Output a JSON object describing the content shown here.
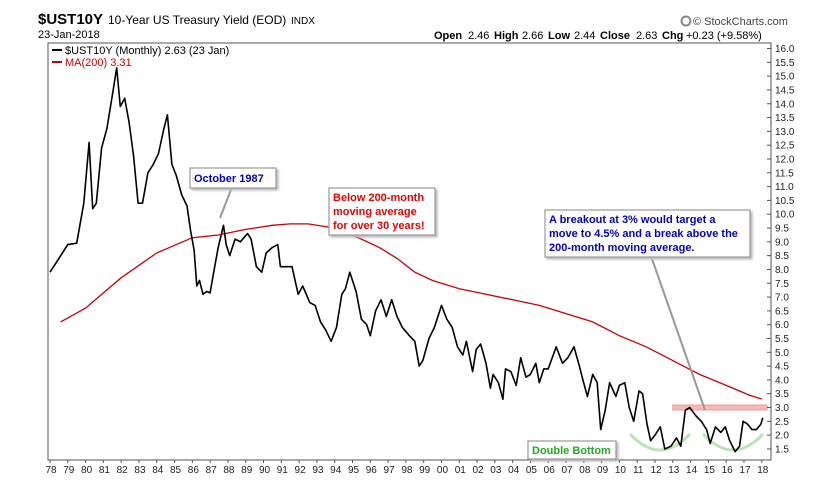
{
  "chart_data": {
    "type": "line",
    "symbol": "$UST10Y",
    "title": "10-Year US Treasury Yield (EOD)",
    "exchange": "INDX",
    "date": "23-Jan-2018",
    "brand": "© StockCharts.com",
    "ohlc": {
      "open_label": "Open",
      "open": "2.46",
      "high_label": "High",
      "high": "2.66",
      "low_label": "Low",
      "low": "2.44",
      "close_label": "Close",
      "close": "2.63",
      "chg_label": "Chg",
      "chg": "+0.23 (+9.58%)"
    },
    "legend": [
      {
        "name": "$UST10Y (Monthly) 2.63 (23 Jan)",
        "color": "#000000"
      },
      {
        "name": "MA(200) 3.31",
        "color": "#cc0000"
      }
    ],
    "ylim": [
      1.1,
      16.2
    ],
    "yticks": [
      "1.5",
      "2.0",
      "2.5",
      "3.0",
      "3.5",
      "4.0",
      "4.5",
      "5.0",
      "5.5",
      "6.0",
      "6.5",
      "7.0",
      "7.5",
      "8.0",
      "8.5",
      "9.0",
      "9.5",
      "10.0",
      "10.5",
      "11.0",
      "11.5",
      "12.0",
      "12.5",
      "13.0",
      "13.5",
      "14.0",
      "14.5",
      "15.0",
      "15.5",
      "16.0"
    ],
    "xlim": [
      1978.0,
      2018.35
    ],
    "xticks": [
      "78",
      "79",
      "80",
      "81",
      "82",
      "83",
      "84",
      "85",
      "86",
      "87",
      "88",
      "89",
      "90",
      "91",
      "92",
      "93",
      "94",
      "95",
      "96",
      "97",
      "98",
      "99",
      "00",
      "01",
      "02",
      "03",
      "04",
      "05",
      "06",
      "07",
      "08",
      "09",
      "10",
      "11",
      "12",
      "13",
      "14",
      "15",
      "16",
      "17",
      "18"
    ],
    "series": [
      {
        "name": "$UST10Y (Monthly)",
        "color": "#000000",
        "points": [
          [
            1978.0,
            7.9
          ],
          [
            1978.5,
            8.4
          ],
          [
            1979.0,
            8.9
          ],
          [
            1979.5,
            8.95
          ],
          [
            1979.9,
            10.4
          ],
          [
            1980.2,
            12.6
          ],
          [
            1980.4,
            10.2
          ],
          [
            1980.6,
            10.4
          ],
          [
            1980.9,
            12.4
          ],
          [
            1981.2,
            13.1
          ],
          [
            1981.5,
            14.3
          ],
          [
            1981.75,
            15.3
          ],
          [
            1981.95,
            13.9
          ],
          [
            1982.2,
            14.2
          ],
          [
            1982.45,
            13.3
          ],
          [
            1982.7,
            12.1
          ],
          [
            1982.95,
            10.4
          ],
          [
            1983.2,
            10.4
          ],
          [
            1983.5,
            11.5
          ],
          [
            1983.8,
            11.8
          ],
          [
            1984.1,
            12.2
          ],
          [
            1984.4,
            13.1
          ],
          [
            1984.6,
            13.6
          ],
          [
            1984.85,
            11.8
          ],
          [
            1985.1,
            11.4
          ],
          [
            1985.4,
            10.7
          ],
          [
            1985.7,
            10.3
          ],
          [
            1985.9,
            9.4
          ],
          [
            1986.1,
            8.7
          ],
          [
            1986.25,
            7.4
          ],
          [
            1986.4,
            7.6
          ],
          [
            1986.6,
            7.1
          ],
          [
            1986.8,
            7.2
          ],
          [
            1987.0,
            7.15
          ],
          [
            1987.2,
            7.9
          ],
          [
            1987.45,
            8.8
          ],
          [
            1987.75,
            9.6
          ],
          [
            1987.9,
            8.9
          ],
          [
            1988.1,
            8.5
          ],
          [
            1988.4,
            9.1
          ],
          [
            1988.7,
            9.0
          ],
          [
            1989.1,
            9.3
          ],
          [
            1989.3,
            9.1
          ],
          [
            1989.6,
            8.1
          ],
          [
            1989.9,
            7.9
          ],
          [
            1990.15,
            8.6
          ],
          [
            1990.5,
            8.8
          ],
          [
            1990.8,
            8.9
          ],
          [
            1990.95,
            8.1
          ],
          [
            1991.3,
            8.1
          ],
          [
            1991.6,
            8.1
          ],
          [
            1991.95,
            7.1
          ],
          [
            1992.2,
            7.4
          ],
          [
            1992.6,
            6.8
          ],
          [
            1992.9,
            6.7
          ],
          [
            1993.2,
            6.1
          ],
          [
            1993.5,
            5.8
          ],
          [
            1993.8,
            5.4
          ],
          [
            1994.1,
            5.9
          ],
          [
            1994.4,
            7.1
          ],
          [
            1994.6,
            7.3
          ],
          [
            1994.85,
            7.9
          ],
          [
            1995.2,
            7.2
          ],
          [
            1995.5,
            6.2
          ],
          [
            1995.8,
            6.0
          ],
          [
            1996.0,
            5.6
          ],
          [
            1996.3,
            6.5
          ],
          [
            1996.6,
            6.9
          ],
          [
            1996.9,
            6.3
          ],
          [
            1997.2,
            6.9
          ],
          [
            1997.5,
            6.3
          ],
          [
            1997.8,
            5.9
          ],
          [
            1998.2,
            5.6
          ],
          [
            1998.5,
            5.4
          ],
          [
            1998.75,
            4.5
          ],
          [
            1998.95,
            4.7
          ],
          [
            1999.3,
            5.5
          ],
          [
            1999.6,
            5.9
          ],
          [
            2000.0,
            6.7
          ],
          [
            2000.3,
            6.2
          ],
          [
            2000.6,
            5.9
          ],
          [
            2000.9,
            5.2
          ],
          [
            2001.2,
            4.9
          ],
          [
            2001.4,
            5.4
          ],
          [
            2001.75,
            4.3
          ],
          [
            2001.95,
            5.1
          ],
          [
            2002.2,
            5.3
          ],
          [
            2002.5,
            4.6
          ],
          [
            2002.75,
            3.7
          ],
          [
            2002.9,
            4.2
          ],
          [
            2003.2,
            3.9
          ],
          [
            2003.45,
            3.3
          ],
          [
            2003.6,
            4.4
          ],
          [
            2003.9,
            4.3
          ],
          [
            2004.2,
            3.8
          ],
          [
            2004.45,
            4.8
          ],
          [
            2004.75,
            4.1
          ],
          [
            2005.0,
            4.2
          ],
          [
            2005.3,
            4.6
          ],
          [
            2005.5,
            3.9
          ],
          [
            2005.75,
            4.4
          ],
          [
            2006.0,
            4.4
          ],
          [
            2006.45,
            5.2
          ],
          [
            2006.8,
            4.6
          ],
          [
            2007.1,
            4.8
          ],
          [
            2007.45,
            5.2
          ],
          [
            2007.75,
            4.5
          ],
          [
            2007.95,
            4.0
          ],
          [
            2008.2,
            3.4
          ],
          [
            2008.5,
            4.2
          ],
          [
            2008.75,
            3.9
          ],
          [
            2008.95,
            2.2
          ],
          [
            2009.2,
            2.9
          ],
          [
            2009.45,
            3.9
          ],
          [
            2009.8,
            3.4
          ],
          [
            2010.0,
            3.8
          ],
          [
            2010.3,
            3.9
          ],
          [
            2010.55,
            3.0
          ],
          [
            2010.8,
            2.5
          ],
          [
            2011.1,
            3.6
          ],
          [
            2011.3,
            3.5
          ],
          [
            2011.55,
            2.4
          ],
          [
            2011.75,
            1.8
          ],
          [
            2012.0,
            2.0
          ],
          [
            2012.3,
            2.3
          ],
          [
            2012.55,
            1.5
          ],
          [
            2012.9,
            1.6
          ],
          [
            2013.2,
            1.9
          ],
          [
            2013.45,
            1.6
          ],
          [
            2013.7,
            2.9
          ],
          [
            2013.95,
            3.0
          ],
          [
            2014.3,
            2.7
          ],
          [
            2014.6,
            2.5
          ],
          [
            2014.9,
            2.2
          ],
          [
            2015.1,
            1.7
          ],
          [
            2015.4,
            2.3
          ],
          [
            2015.7,
            2.1
          ],
          [
            2015.95,
            2.3
          ],
          [
            2016.2,
            1.8
          ],
          [
            2016.5,
            1.4
          ],
          [
            2016.75,
            1.6
          ],
          [
            2016.95,
            2.5
          ],
          [
            2017.2,
            2.4
          ],
          [
            2017.45,
            2.2
          ],
          [
            2017.7,
            2.2
          ],
          [
            2017.95,
            2.4
          ],
          [
            2018.06,
            2.63
          ]
        ]
      },
      {
        "name": "MA(200)",
        "color": "#cc0000",
        "points": [
          [
            1978.6,
            6.1
          ],
          [
            1980.0,
            6.6
          ],
          [
            1982.0,
            7.7
          ],
          [
            1984.0,
            8.6
          ],
          [
            1986.0,
            9.15
          ],
          [
            1987.5,
            9.25
          ],
          [
            1989.0,
            9.45
          ],
          [
            1990.5,
            9.6
          ],
          [
            1991.5,
            9.65
          ],
          [
            1992.5,
            9.65
          ],
          [
            1994.0,
            9.5
          ],
          [
            1995.5,
            9.1
          ],
          [
            1996.5,
            8.8
          ],
          [
            1997.5,
            8.4
          ],
          [
            1998.5,
            7.9
          ],
          [
            1999.5,
            7.6
          ],
          [
            2001.0,
            7.3
          ],
          [
            2002.5,
            7.1
          ],
          [
            2004.0,
            6.9
          ],
          [
            2005.5,
            6.7
          ],
          [
            2007.0,
            6.4
          ],
          [
            2008.5,
            6.1
          ],
          [
            2010.0,
            5.6
          ],
          [
            2011.5,
            5.2
          ],
          [
            2013.0,
            4.7
          ],
          [
            2014.5,
            4.2
          ],
          [
            2016.0,
            3.8
          ],
          [
            2017.3,
            3.45
          ],
          [
            2018.0,
            3.31
          ]
        ]
      }
    ],
    "level_line": {
      "value": 3.0,
      "x_from": 2013.0,
      "x_to": 2018.3,
      "color": "#f4a6a6"
    },
    "annotations": [
      {
        "text": "October 1987",
        "color": "#0000cc"
      },
      {
        "lines": [
          "Below 200-month",
          "moving average",
          "for over 30 years!"
        ],
        "color": "#ee0000"
      },
      {
        "lines": [
          "A breakout at 3% would target a",
          "move to 4.5% and a break above the",
          "200-month moving average."
        ],
        "color": "#0000cc"
      },
      {
        "text": "Double Bottom",
        "color": "#22aa22"
      }
    ]
  }
}
